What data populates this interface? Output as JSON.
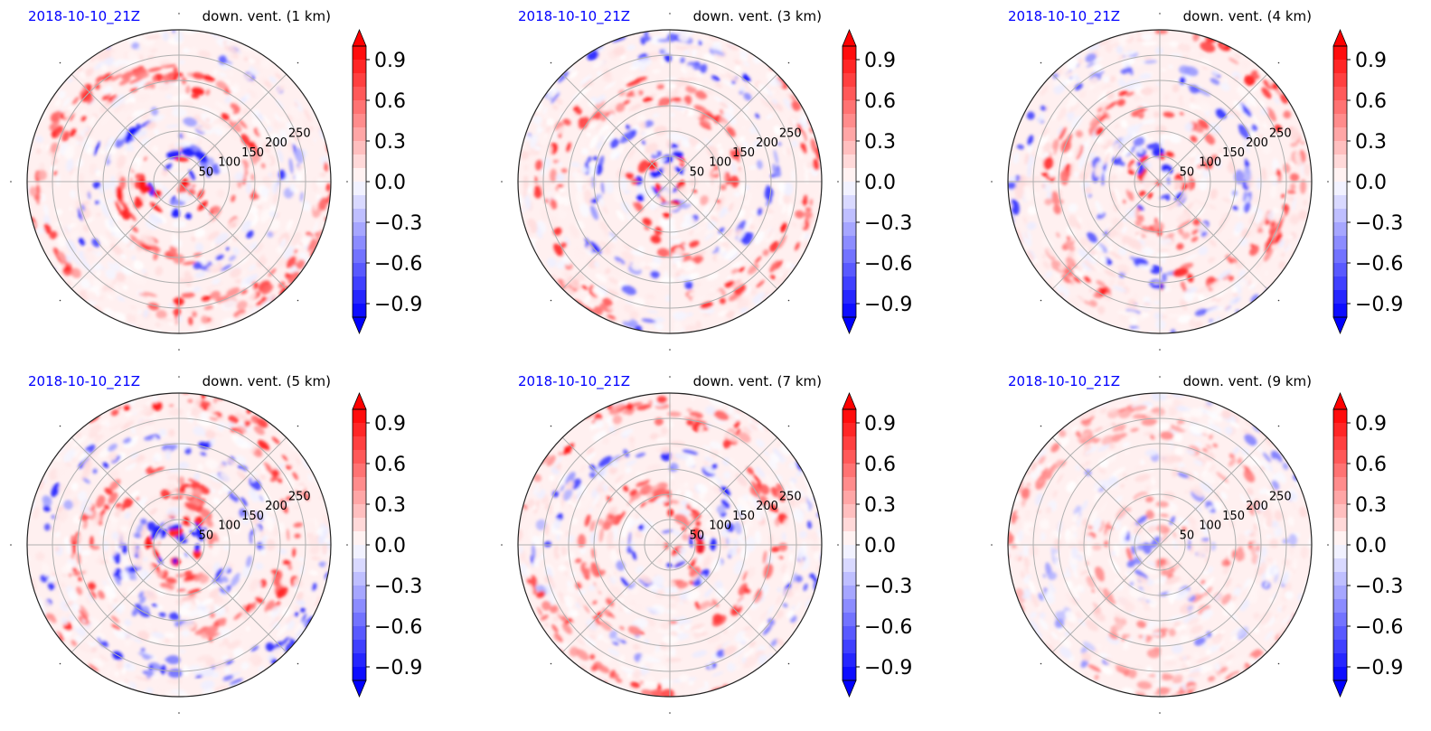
{
  "chart_data": [
    {
      "type": "heatmap",
      "projection": "polar",
      "date_label": "2018-10-10_21Z",
      "title": "down. vent. (1 km)",
      "r_ticks": [
        "50",
        "100",
        "150",
        "200",
        "250"
      ],
      "r_max": 300,
      "grid": true,
      "colormap": "bwr",
      "color_range": [
        -1.0,
        1.0
      ],
      "colorbar_ticks": [
        "0.9",
        "0.6",
        "0.3",
        "0.0",
        "−0.3",
        "−0.6",
        "−0.9"
      ],
      "colorbar_extend": "both"
    },
    {
      "type": "heatmap",
      "projection": "polar",
      "date_label": "2018-10-10_21Z",
      "title": "down. vent. (3 km)",
      "r_ticks": [
        "50",
        "100",
        "150",
        "200",
        "250"
      ],
      "r_max": 300,
      "grid": true,
      "colormap": "bwr",
      "color_range": [
        -1.0,
        1.0
      ],
      "colorbar_ticks": [
        "0.9",
        "0.6",
        "0.3",
        "0.0",
        "−0.3",
        "−0.6",
        "−0.9"
      ],
      "colorbar_extend": "both"
    },
    {
      "type": "heatmap",
      "projection": "polar",
      "date_label": "2018-10-10_21Z",
      "title": "down. vent. (4 km)",
      "r_ticks": [
        "50",
        "100",
        "150",
        "200",
        "250"
      ],
      "r_max": 300,
      "grid": true,
      "colormap": "bwr",
      "color_range": [
        -1.0,
        1.0
      ],
      "colorbar_ticks": [
        "0.9",
        "0.6",
        "0.3",
        "0.0",
        "−0.3",
        "−0.6",
        "−0.9"
      ],
      "colorbar_extend": "both"
    },
    {
      "type": "heatmap",
      "projection": "polar",
      "date_label": "2018-10-10_21Z",
      "title": "down. vent. (5 km)",
      "r_ticks": [
        "50",
        "100",
        "150",
        "200",
        "250"
      ],
      "r_max": 300,
      "grid": true,
      "colormap": "bwr",
      "color_range": [
        -1.0,
        1.0
      ],
      "colorbar_ticks": [
        "0.9",
        "0.6",
        "0.3",
        "0.0",
        "−0.3",
        "−0.6",
        "−0.9"
      ],
      "colorbar_extend": "both"
    },
    {
      "type": "heatmap",
      "projection": "polar",
      "date_label": "2018-10-10_21Z",
      "title": "down. vent. (7 km)",
      "r_ticks": [
        "50",
        "100",
        "150",
        "200",
        "250"
      ],
      "r_max": 300,
      "grid": true,
      "colormap": "bwr",
      "color_range": [
        -1.0,
        1.0
      ],
      "colorbar_ticks": [
        "0.9",
        "0.6",
        "0.3",
        "0.0",
        "−0.3",
        "−0.6",
        "−0.9"
      ],
      "colorbar_extend": "both"
    },
    {
      "type": "heatmap",
      "projection": "polar",
      "date_label": "2018-10-10_21Z",
      "title": "down. vent. (9 km)",
      "r_ticks": [
        "50",
        "100",
        "150",
        "200",
        "250"
      ],
      "r_max": 300,
      "grid": true,
      "colormap": "bwr",
      "color_range": [
        -1.0,
        1.0
      ],
      "colorbar_ticks": [
        "0.9",
        "0.6",
        "0.3",
        "0.0",
        "−0.3",
        "−0.6",
        "−0.9"
      ],
      "colorbar_extend": "both"
    }
  ]
}
